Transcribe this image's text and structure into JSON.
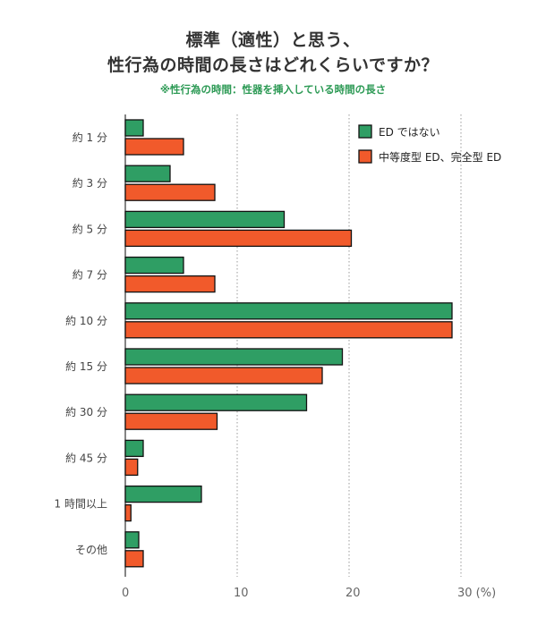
{
  "title_line1": "標準（適性）と思う、",
  "title_line2": "性行為の時間の長さはどれくらいですか？",
  "subtitle": "※性行為の時間：性器を挿入している時間の長さ",
  "chart_data": {
    "type": "bar",
    "orientation": "horizontal",
    "categories": [
      "約 1 分",
      "約 3 分",
      "約 5 分",
      "約 7 分",
      "約 10 分",
      "約 15 分",
      "約 30 分",
      "約 45 分",
      "1 時間以上",
      "その他"
    ],
    "series": [
      {
        "name": "ED ではない",
        "color": "#2f9e64",
        "values": [
          1.6,
          4.0,
          14.2,
          5.2,
          29.2,
          19.4,
          16.2,
          1.6,
          6.8,
          1.2
        ]
      },
      {
        "name": "中等度型 ED、完全型 ED",
        "color": "#f15a2b",
        "values": [
          5.2,
          8.0,
          20.2,
          8.0,
          29.2,
          17.6,
          8.2,
          1.1,
          0.5,
          1.6
        ]
      }
    ],
    "xlim": [
      0,
      30
    ],
    "xticks": [
      0,
      10,
      20,
      30
    ],
    "xunit": "(%)",
    "grid": true,
    "legend": "top-right"
  }
}
